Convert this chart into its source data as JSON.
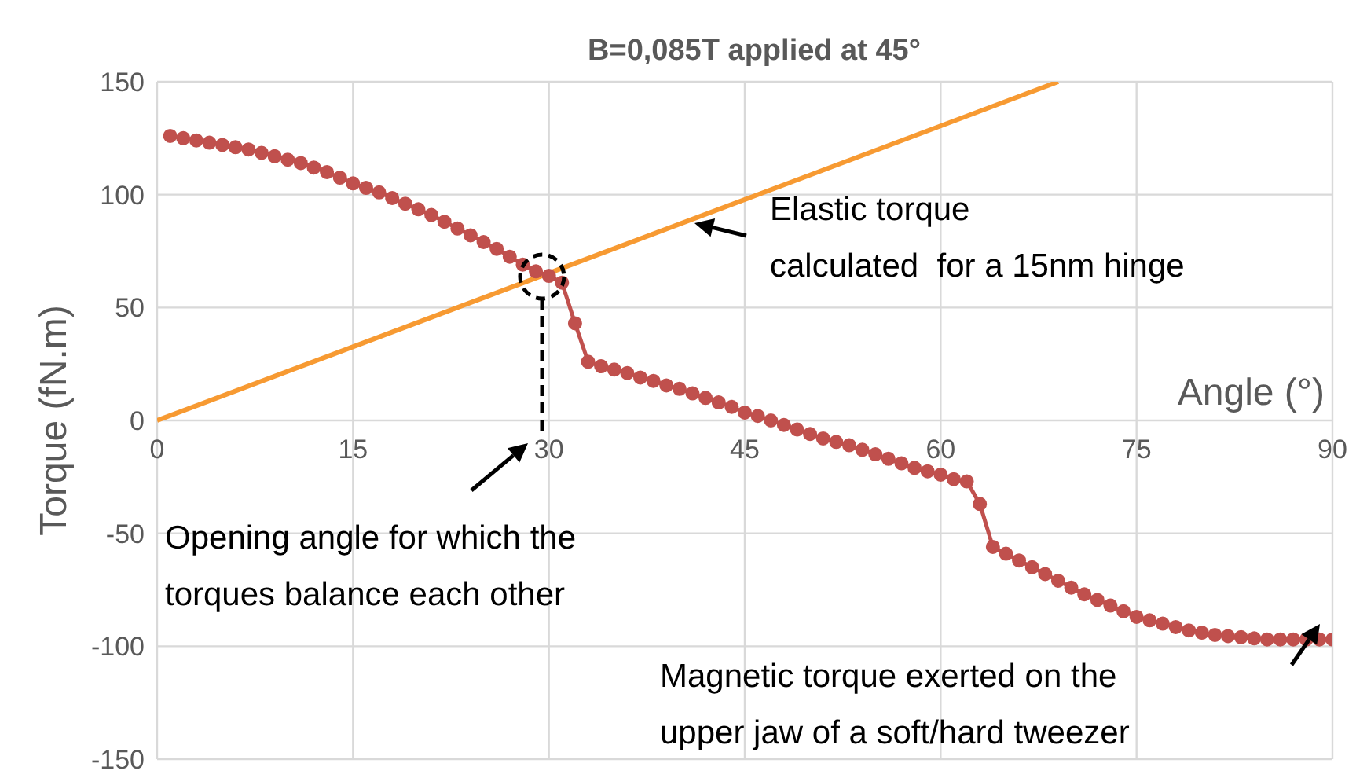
{
  "chart_data": {
    "type": "line",
    "title": "B=0,085T applied at 45°",
    "xlabel": "Angle (°)",
    "ylabel": "Torque (fN.m)",
    "xlim": [
      0,
      90
    ],
    "xticks": [
      0,
      15,
      30,
      45,
      60,
      75,
      90
    ],
    "ylim": [
      -150,
      150
    ],
    "yticks": [
      -150,
      -100,
      -50,
      0,
      50,
      100,
      150
    ],
    "grid": true,
    "line_style": "solid",
    "annotations": [
      "Elastic torque\ncalculated  for a 15nm hinge",
      "Opening angle for which the\ntorques balance each other",
      "Magnetic torque exerted on the\nupper jaw of a soft/hard tweezer"
    ],
    "series": [
      {
        "color": "#f79a32",
        "marker": "none",
        "x": [
          0,
          69
        ],
        "values": [
          0,
          150
        ]
      },
      {
        "color": "#c0504d",
        "marker": "circle",
        "x": [
          1,
          2,
          3,
          4,
          5,
          6,
          7,
          8,
          9,
          10,
          11,
          12,
          13,
          14,
          15,
          16,
          17,
          18,
          19,
          20,
          21,
          22,
          23,
          24,
          25,
          26,
          27,
          28,
          29,
          30,
          31,
          32,
          33,
          34,
          35,
          36,
          37,
          38,
          39,
          40,
          41,
          42,
          43,
          44,
          45,
          46,
          47,
          48,
          49,
          50,
          51,
          52,
          53,
          54,
          55,
          56,
          57,
          58,
          59,
          60,
          61,
          62,
          63,
          64,
          65,
          66,
          67,
          68,
          69,
          70,
          71,
          72,
          73,
          74,
          75,
          76,
          77,
          78,
          79,
          80,
          81,
          82,
          83,
          84,
          85,
          86,
          87,
          88,
          89,
          90
        ],
        "values": [
          126,
          125,
          124,
          123,
          122,
          121,
          120,
          118.5,
          117,
          115.5,
          114,
          112,
          110,
          107.5,
          105,
          103,
          101,
          98.5,
          96,
          93.5,
          91,
          88,
          85,
          82,
          79,
          76,
          72.5,
          69,
          66,
          64,
          61,
          43,
          26,
          24,
          22.5,
          21,
          19,
          17.5,
          15.5,
          14,
          12,
          10,
          8,
          6,
          3.5,
          2,
          0,
          -2,
          -4,
          -6,
          -8,
          -9.5,
          -11,
          -13,
          -15,
          -17,
          -19,
          -21,
          -22.5,
          -24,
          -26,
          -27,
          -37,
          -56,
          -59,
          -62,
          -65,
          -68,
          -71,
          -74,
          -77,
          -79.5,
          -82,
          -84.5,
          -87,
          -88.5,
          -90,
          -91.5,
          -93,
          -94,
          -95,
          -95.5,
          -96,
          -96.5,
          -97,
          -97,
          -97,
          -97,
          -97,
          -97
        ]
      }
    ]
  }
}
